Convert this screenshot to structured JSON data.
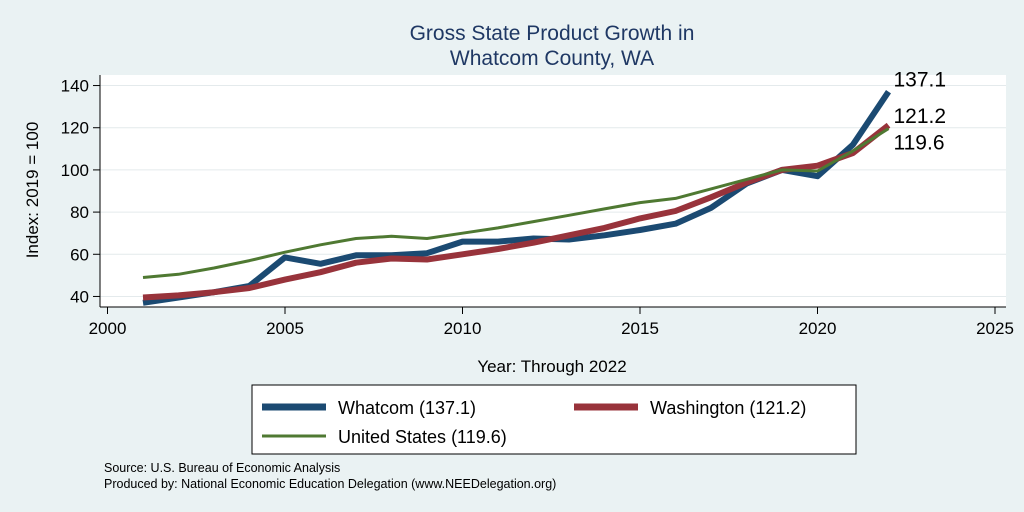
{
  "chart_data": {
    "type": "line",
    "title": [
      "Gross State Product Growth in",
      "Whatcom County, WA"
    ],
    "xlabel": "Year: Through 2022",
    "ylabel": "Index: 2019 = 100",
    "xlim": [
      2000,
      2025
    ],
    "ylim": [
      35,
      145
    ],
    "xticks": [
      2000,
      2005,
      2010,
      2015,
      2020,
      2025
    ],
    "yticks": [
      40,
      60,
      80,
      100,
      120,
      140
    ],
    "grid": true,
    "legend_position": "bottom",
    "x": [
      2001,
      2002,
      2003,
      2004,
      2005,
      2006,
      2007,
      2008,
      2009,
      2010,
      2011,
      2012,
      2013,
      2014,
      2015,
      2016,
      2017,
      2018,
      2019,
      2020,
      2021,
      2022
    ],
    "series": [
      {
        "name": "Whatcom",
        "legend_label": "Whatcom  (137.1)",
        "end_label": "137.1",
        "color": "#1b4a72",
        "values": [
          37,
          39.5,
          42,
          45,
          58.5,
          55.5,
          59.5,
          59.5,
          60.5,
          66,
          66,
          67.5,
          67,
          69,
          71.5,
          74.5,
          82,
          93.5,
          100,
          97,
          112,
          137.1
        ]
      },
      {
        "name": "Washington",
        "legend_label": "Washington (121.2)",
        "end_label": "121.2",
        "color": "#98333b",
        "values": [
          39.5,
          40.5,
          42,
          44,
          48,
          51.5,
          56,
          58,
          57.5,
          60,
          62.5,
          65.5,
          69,
          72.5,
          77,
          80.5,
          87,
          94,
          100,
          102,
          108,
          121.2
        ]
      },
      {
        "name": "United States",
        "legend_label": "United States (119.6)",
        "end_label": "119.6",
        "color": "#4f7932",
        "values": [
          49,
          50.5,
          53.5,
          57,
          61,
          64.5,
          67.5,
          68.5,
          67.5,
          70,
          72.5,
          75.5,
          78.5,
          81.5,
          84.5,
          86.5,
          91,
          95.5,
          100,
          99.5,
          109,
          119.6
        ]
      }
    ],
    "footnotes": [
      "Source: U.S. Bureau of Economic Analysis",
      "Produced by: National Economic Education Delegation (www.NEEDelegation.org)"
    ]
  }
}
